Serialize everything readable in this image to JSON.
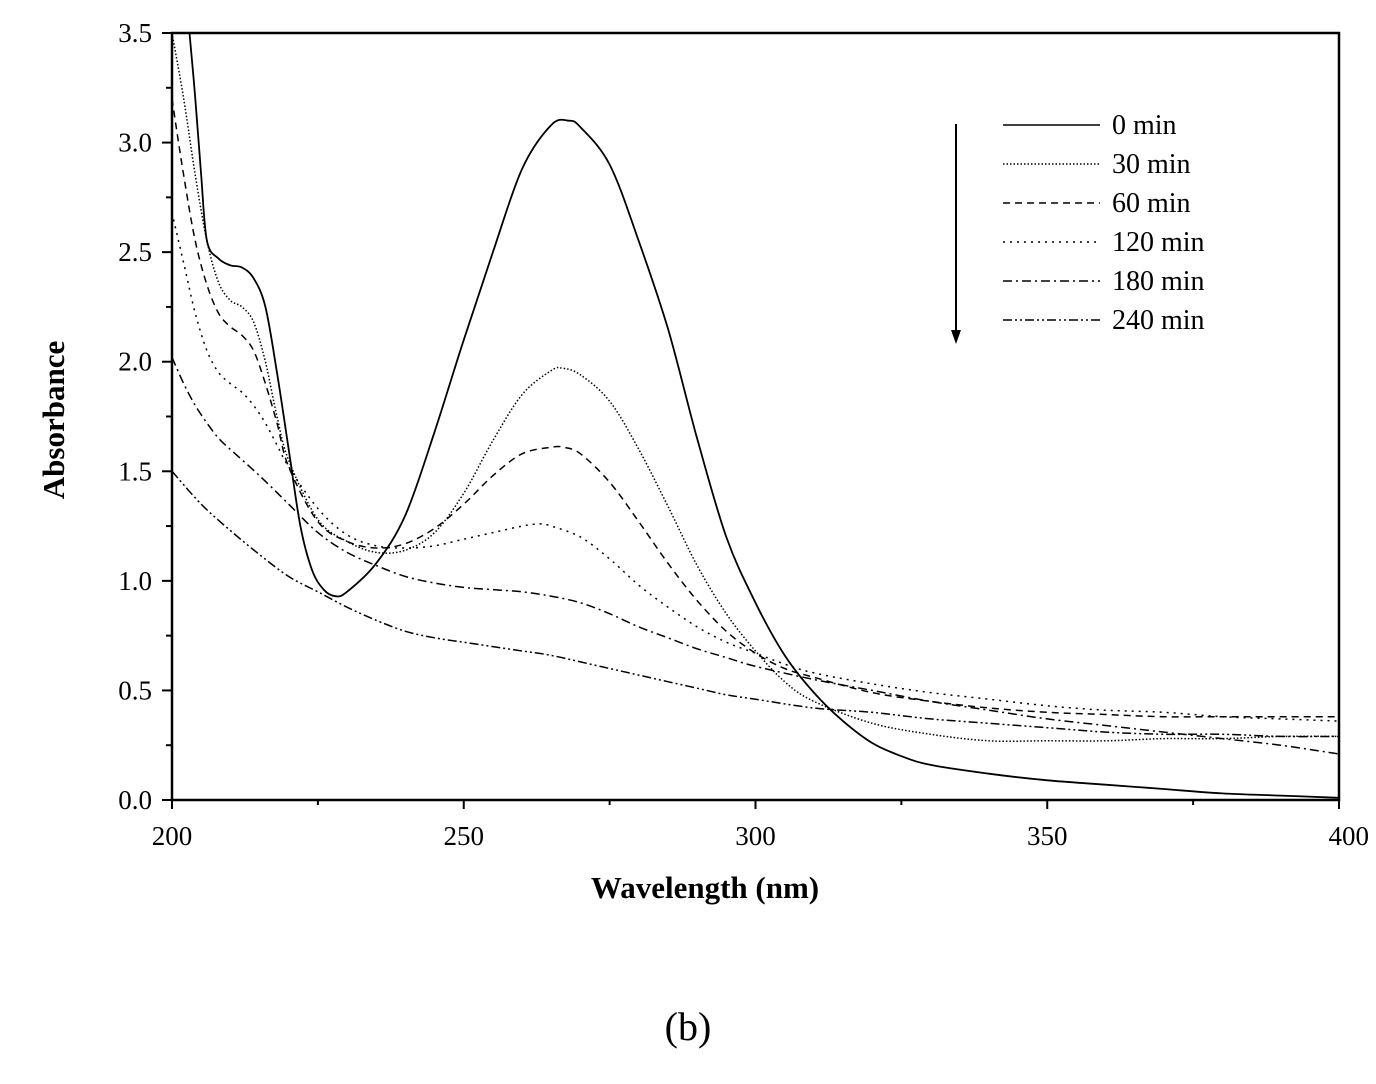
{
  "chart_data": {
    "type": "line",
    "xlabel": "Wavelength (nm)",
    "ylabel": "Absorbance",
    "xlim": [
      200,
      400
    ],
    "ylim": [
      0.0,
      3.5
    ],
    "x_ticks": [
      "200",
      "250",
      "300",
      "350",
      "400"
    ],
    "y_ticks": [
      "0.0",
      "0.5",
      "1.0",
      "1.5",
      "2.0",
      "2.5",
      "3.0",
      "3.5"
    ],
    "grid": false,
    "legend_position": "top-right",
    "annotation": "arrow pointing down (decreasing absorbance with time)",
    "panel_label": "(b)",
    "series": [
      {
        "name": "0 min",
        "dash": "solid",
        "x": [
          203,
          204,
          205,
          206,
          208,
          210,
          212,
          214,
          216,
          218,
          220,
          222,
          224,
          226,
          228,
          230,
          235,
          240,
          245,
          250,
          255,
          260,
          265,
          268,
          270,
          275,
          280,
          285,
          290,
          295,
          300,
          305,
          310,
          315,
          320,
          325,
          330,
          340,
          350,
          360,
          370,
          380,
          390,
          400
        ],
        "y": [
          3.5,
          3.2,
          2.85,
          2.55,
          2.47,
          2.44,
          2.43,
          2.38,
          2.25,
          1.95,
          1.6,
          1.25,
          1.05,
          0.96,
          0.93,
          0.95,
          1.08,
          1.3,
          1.68,
          2.1,
          2.5,
          2.88,
          3.08,
          3.1,
          3.07,
          2.9,
          2.55,
          2.15,
          1.65,
          1.2,
          0.9,
          0.66,
          0.49,
          0.36,
          0.26,
          0.2,
          0.16,
          0.12,
          0.09,
          0.07,
          0.05,
          0.03,
          0.02,
          0.01
        ]
      },
      {
        "name": "30 min",
        "dash": "dotted-fine",
        "x": [
          200,
          202,
          204,
          206,
          208,
          210,
          212,
          214,
          216,
          218,
          220,
          225,
          230,
          235,
          240,
          245,
          250,
          255,
          260,
          265,
          267,
          270,
          275,
          280,
          285,
          290,
          295,
          300,
          305,
          310,
          320,
          330,
          340,
          350,
          360,
          370,
          380,
          390,
          400
        ],
        "y": [
          3.5,
          3.2,
          2.85,
          2.55,
          2.36,
          2.28,
          2.25,
          2.18,
          2.0,
          1.75,
          1.55,
          1.28,
          1.18,
          1.13,
          1.14,
          1.22,
          1.4,
          1.64,
          1.85,
          1.96,
          1.97,
          1.94,
          1.82,
          1.6,
          1.34,
          1.07,
          0.85,
          0.68,
          0.54,
          0.45,
          0.35,
          0.3,
          0.27,
          0.27,
          0.27,
          0.28,
          0.28,
          0.29,
          0.29
        ]
      },
      {
        "name": "60 min",
        "dash": "dashed",
        "x": [
          200,
          202,
          204,
          206,
          208,
          210,
          212,
          214,
          216,
          218,
          220,
          225,
          230,
          235,
          240,
          245,
          250,
          255,
          260,
          265,
          267,
          270,
          275,
          280,
          285,
          290,
          295,
          300,
          305,
          310,
          320,
          330,
          340,
          350,
          360,
          370,
          380,
          390,
          400
        ],
        "y": [
          3.2,
          2.85,
          2.55,
          2.35,
          2.22,
          2.16,
          2.12,
          2.05,
          1.9,
          1.72,
          1.52,
          1.27,
          1.18,
          1.15,
          1.17,
          1.24,
          1.35,
          1.48,
          1.58,
          1.61,
          1.61,
          1.58,
          1.45,
          1.27,
          1.08,
          0.91,
          0.77,
          0.67,
          0.6,
          0.56,
          0.49,
          0.45,
          0.42,
          0.4,
          0.39,
          0.38,
          0.38,
          0.38,
          0.38
        ]
      },
      {
        "name": "120 min",
        "dash": "dotted",
        "x": [
          200,
          202,
          204,
          206,
          208,
          210,
          212,
          214,
          216,
          218,
          220,
          225,
          230,
          235,
          240,
          245,
          250,
          255,
          260,
          263,
          265,
          270,
          275,
          280,
          285,
          290,
          295,
          300,
          305,
          310,
          320,
          330,
          340,
          350,
          360,
          370,
          380,
          390,
          400
        ],
        "y": [
          2.68,
          2.45,
          2.22,
          2.05,
          1.95,
          1.9,
          1.86,
          1.8,
          1.72,
          1.62,
          1.52,
          1.33,
          1.21,
          1.16,
          1.15,
          1.16,
          1.19,
          1.22,
          1.25,
          1.26,
          1.25,
          1.2,
          1.1,
          0.98,
          0.88,
          0.79,
          0.72,
          0.67,
          0.62,
          0.58,
          0.53,
          0.49,
          0.46,
          0.43,
          0.41,
          0.4,
          0.38,
          0.37,
          0.36
        ]
      },
      {
        "name": "180 min",
        "dash": "dash-dot",
        "x": [
          200,
          202,
          204,
          206,
          208,
          210,
          215,
          220,
          225,
          230,
          235,
          240,
          245,
          250,
          255,
          260,
          265,
          270,
          275,
          280,
          285,
          290,
          295,
          300,
          310,
          320,
          330,
          340,
          350,
          360,
          370,
          380,
          390,
          400
        ],
        "y": [
          2.02,
          1.9,
          1.8,
          1.72,
          1.65,
          1.6,
          1.48,
          1.35,
          1.22,
          1.13,
          1.07,
          1.02,
          0.99,
          0.97,
          0.96,
          0.95,
          0.93,
          0.9,
          0.85,
          0.79,
          0.74,
          0.69,
          0.65,
          0.61,
          0.55,
          0.5,
          0.45,
          0.41,
          0.37,
          0.34,
          0.31,
          0.28,
          0.25,
          0.21
        ]
      },
      {
        "name": "240 min",
        "dash": "dash-dot-dot",
        "x": [
          200,
          205,
          210,
          215,
          220,
          225,
          230,
          235,
          240,
          245,
          250,
          255,
          260,
          265,
          270,
          275,
          280,
          285,
          290,
          295,
          300,
          310,
          320,
          330,
          340,
          350,
          360,
          370,
          380,
          390,
          400
        ],
        "y": [
          1.5,
          1.35,
          1.23,
          1.12,
          1.02,
          0.95,
          0.88,
          0.82,
          0.77,
          0.74,
          0.72,
          0.7,
          0.68,
          0.66,
          0.63,
          0.6,
          0.57,
          0.54,
          0.51,
          0.48,
          0.46,
          0.42,
          0.4,
          0.37,
          0.35,
          0.33,
          0.31,
          0.3,
          0.3,
          0.29,
          0.29
        ]
      }
    ]
  }
}
